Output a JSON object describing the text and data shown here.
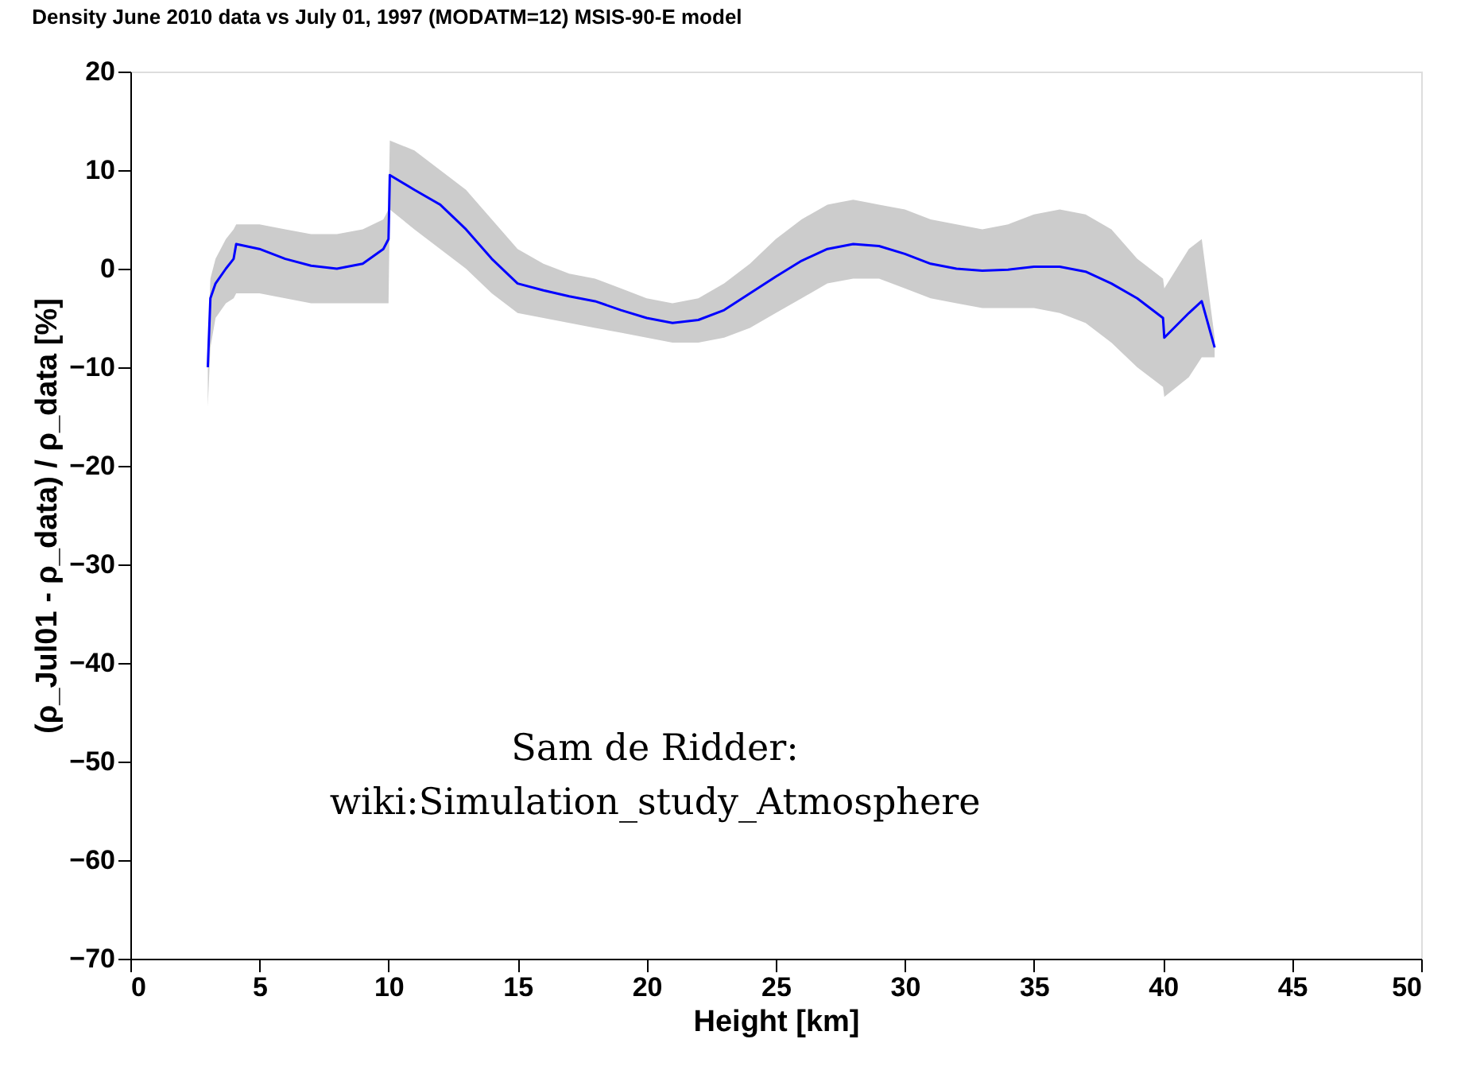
{
  "chart_data": {
    "type": "line",
    "title": "Density June 2010 data vs July 01, 1997 (MODATM=12) MSIS-90-E model",
    "xlabel": "Height [km]",
    "ylabel": "(ρ_Jul01 - ρ_data) / ρ_data [%]",
    "x": [
      3.0,
      3.1,
      3.3,
      3.7,
      4.0,
      4.1,
      5,
      6,
      7,
      8,
      9,
      9.8,
      10,
      10.05,
      11,
      12,
      13,
      14,
      15,
      16,
      17,
      18,
      19,
      20,
      21,
      22,
      23,
      24,
      25,
      26,
      27,
      28,
      29,
      30,
      31,
      32,
      33,
      34,
      35,
      36,
      37,
      38,
      39,
      40,
      40.05,
      41,
      41.5,
      42
    ],
    "series": [
      {
        "color": "#0000ff",
        "values": [
          -10,
          -3,
          -1.5,
          0,
          1,
          2.5,
          2,
          1,
          0.3,
          0,
          0.5,
          2,
          3,
          9.5,
          8,
          6.5,
          4,
          1,
          -1.5,
          -2.2,
          -2.8,
          -3.3,
          -4.2,
          -5,
          -5.5,
          -5.2,
          -4.2,
          -2.5,
          -0.8,
          0.8,
          2,
          2.5,
          2.3,
          1.5,
          0.5,
          0,
          -0.2,
          -0.1,
          0.2,
          0.2,
          -0.3,
          -1.5,
          -3,
          -5,
          -7,
          -4.5,
          -3.3,
          -8
        ],
        "lower": [
          -14,
          -8,
          -5,
          -3.5,
          -3,
          -2.5,
          -2.5,
          -3,
          -3.5,
          -3.5,
          -3.5,
          -3.5,
          -3.5,
          6,
          4,
          2,
          0,
          -2.5,
          -4.5,
          -5,
          -5.5,
          -6,
          -6.5,
          -7,
          -7.5,
          -7.5,
          -7,
          -6,
          -4.5,
          -3,
          -1.5,
          -1,
          -1,
          -2,
          -3,
          -3.5,
          -4,
          -4,
          -4,
          -4.5,
          -5.5,
          -7.5,
          -10,
          -12,
          -13,
          -11,
          -9,
          -9
        ],
        "upper": [
          -8,
          -1,
          1,
          3,
          4,
          4.5,
          4.5,
          4,
          3.5,
          3.5,
          4,
          5,
          6,
          13,
          12,
          10,
          8,
          5,
          2,
          0.5,
          -0.5,
          -1,
          -2,
          -3,
          -3.5,
          -3,
          -1.5,
          0.5,
          3,
          5,
          6.5,
          7,
          6.5,
          6,
          5,
          4.5,
          4,
          4.5,
          5.5,
          6,
          5.5,
          4,
          1,
          -1,
          -2,
          2,
          3,
          -7
        ]
      }
    ],
    "xlim": [
      0,
      50
    ],
    "xticks": [
      0,
      5,
      10,
      15,
      20,
      25,
      30,
      35,
      40,
      45,
      50
    ],
    "ylim": [
      -70,
      20
    ],
    "yticks": [
      -70,
      -60,
      -50,
      -40,
      -30,
      -20,
      -10,
      0,
      10,
      20
    ],
    "grid": false,
    "annotations": [
      "Sam de Ridder:\nwiki:Simulation_study_Atmosphere"
    ]
  }
}
